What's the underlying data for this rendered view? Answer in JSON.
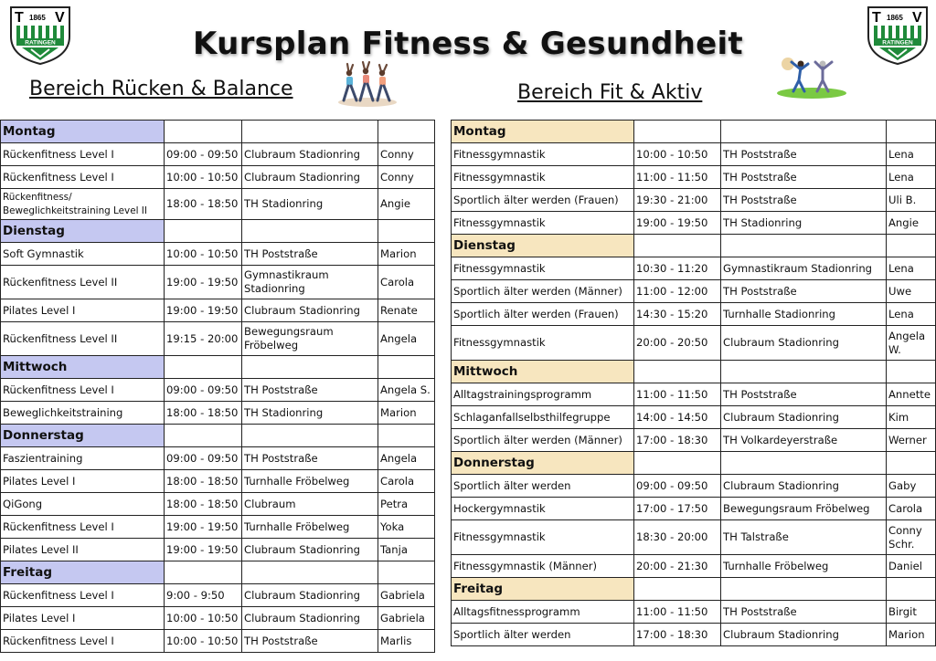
{
  "header": {
    "title": "Kursplan Fitness & Gesundheit",
    "logo_top_left": "T",
    "logo_year": "1865",
    "logo_top_right": "V",
    "logo_city": "RATINGEN"
  },
  "left_section": {
    "title": "Bereich Rücken & Balance",
    "days": [
      {
        "day": "Montag",
        "rows": [
          [
            "Rückenfitness Level I",
            "09:00 - 09:50",
            "Clubraum Stadionring",
            "Conny"
          ],
          [
            "Rückenfitness Level I",
            "10:00 - 10:50",
            "Clubraum Stadionring",
            "Conny"
          ],
          [
            "Rückenfitness/ Beweglichkeitstraining Level II",
            "18:00 - 18:50",
            "TH Stadionring",
            "Angie"
          ]
        ]
      },
      {
        "day": "Dienstag",
        "rows": [
          [
            "Soft Gymnastik",
            "10:00 - 10:50",
            "TH Poststraße",
            "Marion"
          ],
          [
            "Rückenfitness Level II",
            "19:00 - 19:50",
            "Gymnastikraum Stadionring",
            "Carola"
          ],
          [
            "Pilates Level I",
            "19:00 - 19:50",
            "Clubraum Stadionring",
            "Renate"
          ],
          [
            "Rückenfitness Level II",
            "19:15 - 20:00",
            "Bewegungsraum Fröbelweg",
            "Angela"
          ]
        ]
      },
      {
        "day": "Mittwoch",
        "rows": [
          [
            "Rückenfitness Level I",
            "09:00 - 09:50",
            "TH Poststraße",
            "Angela S."
          ],
          [
            "Beweglichkeitstraining",
            "18:00 - 18:50",
            "TH Stadionring",
            "Marion"
          ]
        ]
      },
      {
        "day": "Donnerstag",
        "rows": [
          [
            "Faszientraining",
            "09:00 - 09:50",
            "TH Poststraße",
            "Angela"
          ],
          [
            "Pilates Level I",
            "18:00 - 18:50",
            "Turnhalle Fröbelweg",
            "Carola"
          ],
          [
            "QiGong",
            "18:00 - 18:50",
            "Clubraum",
            "Petra"
          ],
          [
            "Rückenfitness Level I",
            "19:00 - 19:50",
            "Turnhalle Fröbelweg",
            "Yoka"
          ],
          [
            "Pilates Level II",
            "19:00 - 19:50",
            "Clubraum Stadionring",
            "Tanja"
          ]
        ]
      },
      {
        "day": "Freitag",
        "rows": [
          [
            "Rückenfitness Level I",
            "9:00 - 9:50",
            "Clubraum Stadionring",
            "Gabriela"
          ],
          [
            "Pilates Level I",
            "10:00 - 10:50",
            "Clubraum Stadionring",
            "Gabriela"
          ],
          [
            "Rückenfitness Level I",
            "10:00 - 10:50",
            "TH Poststraße",
            "Marlis"
          ]
        ]
      }
    ]
  },
  "right_section": {
    "title": "Bereich Fit & Aktiv",
    "days": [
      {
        "day": "Montag",
        "rows": [
          [
            "Fitnessgymnastik",
            "10:00 - 10:50",
            "TH Poststraße",
            "Lena"
          ],
          [
            "Fitnessgymnastik",
            "11:00 - 11:50",
            "TH Poststraße",
            "Lena"
          ],
          [
            "Sportlich älter werden (Frauen)",
            "19:30 - 21:00",
            "TH Poststraße",
            "Uli B."
          ],
          [
            "Fitnessgymnastik",
            "19:00 - 19:50",
            "TH Stadionring",
            "Angie"
          ]
        ]
      },
      {
        "day": "Dienstag",
        "rows": [
          [
            "Fitnessgymnastik",
            "10:30 - 11:20",
            "Gymnastikraum Stadionring",
            "Lena"
          ],
          [
            "Sportlich älter werden (Männer)",
            "11:00 - 12:00",
            "TH Poststraße",
            "Uwe"
          ],
          [
            "Sportlich älter werden (Frauen)",
            "14:30 - 15:20",
            "Turnhalle Stadionring",
            "Lena"
          ],
          [
            "Fitnessgymnastik",
            "20:00 - 20:50",
            "Clubraum Stadionring",
            "Angela W."
          ]
        ]
      },
      {
        "day": "Mittwoch",
        "rows": [
          [
            "Alltagstrainingsprogramm",
            "11:00 - 11:50",
            "TH Poststraße",
            "Annette"
          ],
          [
            "Schlaganfallselbsthilfegruppe",
            "14:00 - 14:50",
            "Clubraum Stadionring",
            "Kim"
          ],
          [
            "Sportlich älter werden (Männer)",
            "17:00 - 18:30",
            "TH Volkardeyerstraße",
            "Werner"
          ]
        ]
      },
      {
        "day": "Donnerstag",
        "rows": [
          [
            "Sportlich älter werden",
            "09:00 - 09:50",
            "Clubraum Stadionring",
            "Gaby"
          ],
          [
            "Hockergymnastik",
            "17:00 - 17:50",
            "Bewegungsraum Fröbelweg",
            "Carola"
          ],
          [
            "Fitnessgymnastik",
            "18:30 - 20:00",
            "TH Talstraße",
            "Conny Schr."
          ],
          [
            "Fitnessgymnastik (Männer)",
            "20:00 - 21:30",
            "Turnhalle Fröbelweg",
            "Daniel"
          ]
        ]
      },
      {
        "day": "Freitag",
        "rows": [
          [
            "Alltagsfitnessprogramm",
            "11:00 - 11:50",
            "TH Poststraße",
            "Birgit"
          ],
          [
            "Sportlich älter werden",
            "17:00 - 18:30",
            "Clubraum Stadionring",
            "Marion"
          ]
        ]
      }
    ]
  },
  "colors": {
    "left_day_bg": "#c5c8f1",
    "right_day_bg": "#f7e6bf",
    "logo_green": "#1f8a3a"
  }
}
